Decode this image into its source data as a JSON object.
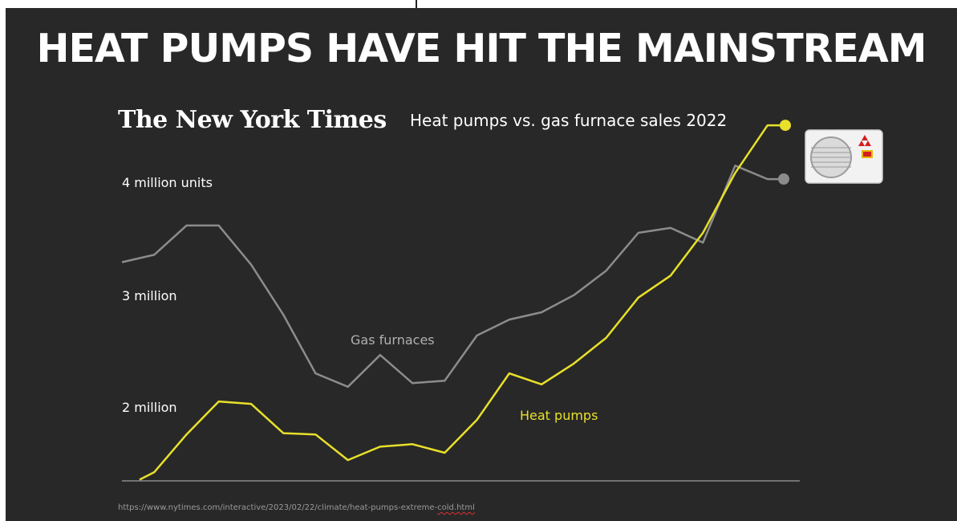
{
  "headline": "HEAT PUMPS HAVE HIT THE MAINSTREAM",
  "logo_text": "The New York Times",
  "chart_data": {
    "type": "line",
    "title": "Heat pumps vs. gas furnace sales 2022",
    "y_tick_labels": [
      "4 million units",
      "3 million",
      "2 million"
    ],
    "y_ticks": [
      4000000,
      3000000,
      2000000
    ],
    "ylim": [
      1350000,
      4300000
    ],
    "x": [
      1,
      2,
      3,
      4,
      5,
      6,
      7,
      8,
      9,
      10,
      11,
      12,
      13,
      14,
      15,
      16,
      17,
      18,
      19,
      20,
      21,
      22
    ],
    "series": [
      {
        "name": "Gas furnaces",
        "color": "#8c8c8c",
        "values": [
          3140000,
          3200000,
          3440000,
          3440000,
          3120000,
          2710000,
          2230000,
          2120000,
          2380000,
          2150000,
          2170000,
          2540000,
          2670000,
          2730000,
          2870000,
          3070000,
          3380000,
          3420000,
          3300000,
          3930000,
          3820000,
          null
        ],
        "end_marker_value": 3820000
      },
      {
        "name": "Heat pumps",
        "color": "#e8e02a",
        "values": [
          null,
          1420000,
          1730000,
          2000000,
          1980000,
          1740000,
          1730000,
          1520000,
          1630000,
          1650000,
          1580000,
          1850000,
          2230000,
          2140000,
          2310000,
          2520000,
          2850000,
          3030000,
          3380000,
          3870000,
          4260000,
          null
        ],
        "start_value": 1360000,
        "end_marker_value": 4260000
      }
    ],
    "series_label_colors": [
      "#b0b0b0",
      "#e8e02a"
    ],
    "grid": false,
    "legend": "inline labels"
  },
  "source_url": "https://www.nytimes.com/interactive/2023/02/22/climate/heat-pumps-extreme-",
  "source_url_tail": "cold.html",
  "unit_icon": "heat-pump-outdoor-unit-icon"
}
